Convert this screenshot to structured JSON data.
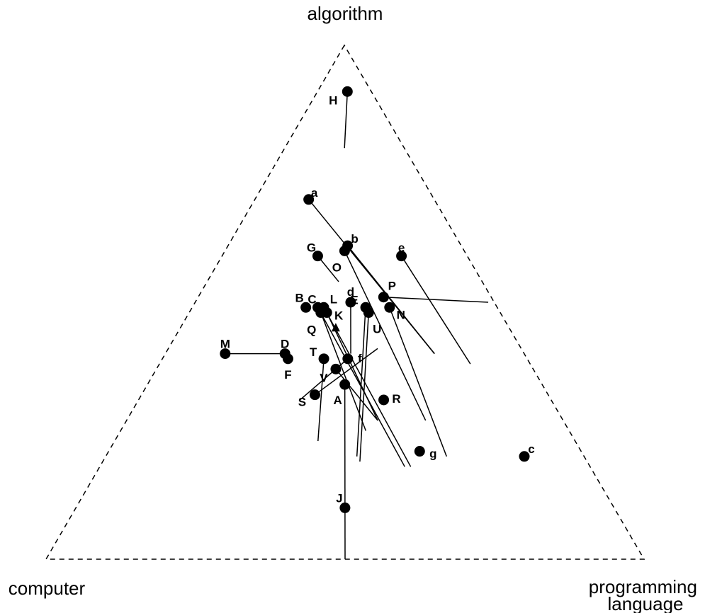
{
  "chart_data": {
    "type": "ternary-scatter",
    "vertices": {
      "top": "algorithm",
      "left": "computer",
      "right": [
        "programming",
        "language"
      ]
    },
    "frame_style": "dashed",
    "marker_color": "#000000",
    "centroid_marker": "triangle",
    "points": [
      {
        "label": "H",
        "algorithm": 0.91,
        "computer": 0.04,
        "programming_language": 0.05,
        "tail": {
          "algorithm": 0.8,
          "computer": 0.1,
          "programming_language": 0.1
        }
      },
      {
        "label": "a",
        "algorithm": 0.7,
        "computer": 0.21,
        "programming_language": 0.09,
        "tail": {
          "algorithm": 0.4,
          "computer": 0.15,
          "programming_language": 0.45
        }
      },
      {
        "label": "G",
        "algorithm": 0.59,
        "computer": 0.25,
        "programming_language": 0.16,
        "tail": {
          "algorithm": 0.54,
          "computer": 0.24,
          "programming_language": 0.22
        }
      },
      {
        "label": "b",
        "algorithm": 0.61,
        "computer": 0.19,
        "programming_language": 0.2,
        "tail": {
          "algorithm": 0.4,
          "computer": 0.15,
          "programming_language": 0.45
        }
      },
      {
        "label": "O",
        "algorithm": 0.6,
        "computer": 0.2,
        "programming_language": 0.2,
        "tail": {
          "algorithm": 0.27,
          "computer": 0.23,
          "programming_language": 0.5
        }
      },
      {
        "label": "e",
        "algorithm": 0.59,
        "computer": 0.11,
        "programming_language": 0.3,
        "tail": {
          "algorithm": 0.38,
          "computer": 0.1,
          "programming_language": 0.52
        }
      },
      {
        "label": "P",
        "algorithm": 0.51,
        "computer": 0.18,
        "programming_language": 0.31,
        "tail": {
          "algorithm": 0.5,
          "computer": 0.01,
          "programming_language": 0.49
        }
      },
      {
        "label": "B",
        "algorithm": 0.49,
        "computer": 0.32,
        "programming_language": 0.19,
        "tail": null
      },
      {
        "label": "C",
        "algorithm": 0.49,
        "computer": 0.3,
        "programming_language": 0.21,
        "tail": {
          "algorithm": 0.18,
          "computer": 0.31,
          "programming_language": 0.51
        }
      },
      {
        "label": "L",
        "algorithm": 0.49,
        "computer": 0.29,
        "programming_language": 0.22,
        "tail": {
          "algorithm": 0.18,
          "computer": 0.3,
          "programming_language": 0.52
        }
      },
      {
        "label": "K",
        "algorithm": 0.48,
        "computer": 0.29,
        "programming_language": 0.23,
        "tail": {
          "algorithm": 0.27,
          "computer": 0.31,
          "programming_language": 0.42
        }
      },
      {
        "label": "Q",
        "algorithm": 0.48,
        "computer": 0.3,
        "programming_language": 0.22,
        "tail": {
          "algorithm": 0.25,
          "computer": 0.34,
          "programming_language": 0.41
        }
      },
      {
        "label": "d",
        "algorithm": 0.5,
        "computer": 0.24,
        "programming_language": 0.26,
        "tail": {
          "algorithm": 0.4,
          "computer": 0.29,
          "programming_language": 0.31
        }
      },
      {
        "label": "E",
        "algorithm": 0.49,
        "computer": 0.22,
        "programming_language": 0.29,
        "tail": {
          "algorithm": 0.2,
          "computer": 0.38,
          "programming_language": 0.42
        }
      },
      {
        "label": "U",
        "algorithm": 0.48,
        "computer": 0.22,
        "programming_language": 0.3,
        "tail": null
      },
      {
        "label": "N",
        "algorithm": 0.49,
        "computer": 0.18,
        "programming_language": 0.33,
        "tail": {
          "algorithm": 0.2,
          "computer": 0.23,
          "programming_language": 0.57
        }
      },
      {
        "label": "M",
        "algorithm": 0.4,
        "computer": 0.5,
        "programming_language": 0.1,
        "tail": {
          "algorithm": 0.4,
          "computer": 0.4,
          "programming_language": 0.2
        }
      },
      {
        "label": "D",
        "algorithm": 0.4,
        "computer": 0.4,
        "programming_language": 0.2,
        "tail": null
      },
      {
        "label": "F",
        "algorithm": 0.39,
        "computer": 0.4,
        "programming_language": 0.21,
        "tail": null
      },
      {
        "label": "T",
        "algorithm": 0.39,
        "computer": 0.34,
        "programming_language": 0.27,
        "tail": {
          "algorithm": 0.23,
          "computer": 0.43,
          "programming_language": 0.34
        }
      },
      {
        "label": "f",
        "algorithm": 0.39,
        "computer": 0.3,
        "programming_language": 0.31,
        "tail": {
          "algorithm": 0.31,
          "computer": 0.42,
          "programming_language": 0.27
        }
      },
      {
        "label": "V",
        "algorithm": 0.37,
        "computer": 0.33,
        "programming_language": 0.3,
        "tail": {
          "algorithm": 0.27,
          "computer": 0.31,
          "programming_language": 0.42
        }
      },
      {
        "label": "S",
        "algorithm": 0.32,
        "computer": 0.39,
        "programming_language": 0.29,
        "tail": {
          "algorithm": 0.41,
          "computer": 0.24,
          "programming_language": 0.35
        }
      },
      {
        "label": "A",
        "algorithm": 0.34,
        "computer": 0.33,
        "programming_language": 0.33,
        "tail": {
          "algorithm": 0.0,
          "computer": 0.5,
          "programming_language": 0.5
        }
      },
      {
        "label": "R",
        "algorithm": 0.31,
        "computer": 0.28,
        "programming_language": 0.41,
        "tail": null
      },
      {
        "label": "g",
        "algorithm": 0.21,
        "computer": 0.27,
        "programming_language": 0.52,
        "tail": null
      },
      {
        "label": "c",
        "algorithm": 0.2,
        "computer": 0.1,
        "programming_language": 0.7,
        "tail": null
      },
      {
        "label": "J",
        "algorithm": 0.1,
        "computer": 0.45,
        "programming_language": 0.45,
        "tail": null
      }
    ],
    "centroid": {
      "algorithm": 0.45,
      "computer": 0.29,
      "programming_language": 0.26
    },
    "extra_segments": [
      {
        "from": {
          "algorithm": 0.19,
          "computer": 0.38,
          "programming_language": 0.43
        },
        "to": {
          "algorithm": 0.48,
          "computer": 0.22,
          "programming_language": 0.3
        }
      }
    ]
  }
}
